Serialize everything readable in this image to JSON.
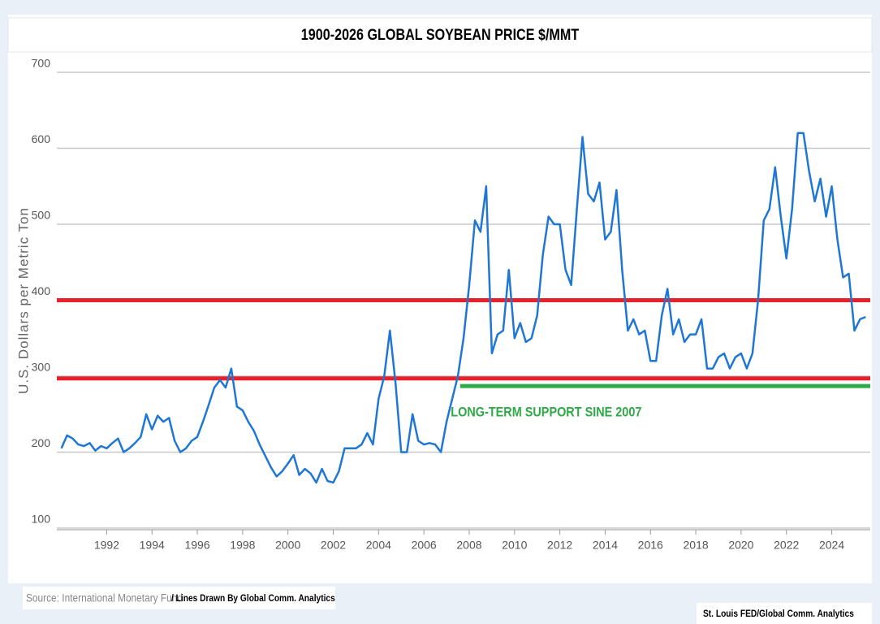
{
  "chart_data": {
    "type": "line",
    "title": "1900-2026 GLOBAL SOYBEAN PRICE  $/MMT",
    "y_label": "U.S. Dollars per Metric Ton",
    "source": "Source: International Monetary Fund",
    "source_note": "/ Lines Drawn By Global Comm. Analytics",
    "credit": "St. Louis FED/Global Comm. Analytics",
    "annotation": {
      "text": "LONG-TERM SUPPORT SINE 2007",
      "x": 2011.4,
      "y": 252,
      "color": "#2eaa46"
    },
    "hlines": [
      {
        "value": 400,
        "color": "#e8202a"
      },
      {
        "value": 297,
        "color": "#e8202a"
      },
      {
        "value": 287,
        "x0": 2007.6,
        "color": "#2eaa46"
      }
    ],
    "xlim": [
      1989.8,
      2025.7
    ],
    "ylim": [
      100,
      700
    ],
    "xticks": [
      1992,
      1994,
      1996,
      1998,
      2000,
      2002,
      2004,
      2006,
      2008,
      2010,
      2012,
      2014,
      2016,
      2018,
      2020,
      2022,
      2024
    ],
    "yticks": [
      100,
      200,
      300,
      400,
      500,
      600,
      700
    ],
    "grid": true,
    "x": [
      1990,
      1990.25,
      1990.5,
      1990.75,
      1991,
      1991.25,
      1991.5,
      1991.75,
      1992,
      1992.25,
      1992.5,
      1992.75,
      1993,
      1993.25,
      1993.5,
      1993.75,
      1994,
      1994.25,
      1994.5,
      1994.75,
      1995,
      1995.25,
      1995.5,
      1995.75,
      1996,
      1996.25,
      1996.5,
      1996.75,
      1997,
      1997.25,
      1997.5,
      1997.75,
      1998,
      1998.25,
      1998.5,
      1998.75,
      1999,
      1999.25,
      1999.5,
      1999.75,
      2000,
      2000.25,
      2000.5,
      2000.75,
      2001,
      2001.25,
      2001.5,
      2001.75,
      2002,
      2002.25,
      2002.5,
      2002.75,
      2003,
      2003.25,
      2003.5,
      2003.75,
      2004,
      2004.25,
      2004.5,
      2004.75,
      2005,
      2005.25,
      2005.5,
      2005.75,
      2006,
      2006.25,
      2006.5,
      2006.75,
      2007,
      2007.25,
      2007.5,
      2007.75,
      2008,
      2008.25,
      2008.5,
      2008.75,
      2009,
      2009.25,
      2009.5,
      2009.75,
      2010,
      2010.25,
      2010.5,
      2010.75,
      2011,
      2011.25,
      2011.5,
      2011.75,
      2012,
      2012.25,
      2012.5,
      2012.75,
      2013,
      2013.25,
      2013.5,
      2013.75,
      2014,
      2014.25,
      2014.5,
      2014.75,
      2015,
      2015.25,
      2015.5,
      2015.75,
      2016,
      2016.25,
      2016.5,
      2016.75,
      2017,
      2017.25,
      2017.5,
      2017.75,
      2018,
      2018.25,
      2018.5,
      2018.75,
      2019,
      2019.25,
      2019.5,
      2019.75,
      2020,
      2020.25,
      2020.5,
      2020.75,
      2021,
      2021.25,
      2021.5,
      2021.75,
      2022,
      2022.25,
      2022.5,
      2022.75,
      2023,
      2023.25,
      2023.5,
      2023.75,
      2024,
      2024.25,
      2024.5,
      2024.75,
      2025,
      2025.25,
      2025.5
    ],
    "series": [
      {
        "color": "#1f77d4",
        "values": [
          205,
          222,
          218,
          210,
          208,
          212,
          202,
          208,
          205,
          212,
          218,
          200,
          205,
          212,
          220,
          250,
          230,
          248,
          240,
          245,
          215,
          200,
          205,
          215,
          220,
          240,
          262,
          285,
          295,
          285,
          310,
          260,
          255,
          240,
          228,
          210,
          195,
          180,
          168,
          175,
          185,
          196,
          170,
          178,
          172,
          160,
          178,
          162,
          160,
          175,
          205,
          205,
          205,
          210,
          225,
          210,
          270,
          300,
          360,
          290,
          200,
          200,
          250,
          215,
          210,
          212,
          210,
          200,
          240,
          270,
          300,
          350,
          420,
          505,
          490,
          550,
          330,
          355,
          360,
          440,
          350,
          370,
          345,
          350,
          380,
          460,
          510,
          500,
          500,
          440,
          420,
          520,
          615,
          540,
          530,
          555,
          480,
          490,
          545,
          440,
          360,
          375,
          355,
          360,
          320,
          320,
          380,
          415,
          355,
          375,
          345,
          355,
          355,
          375,
          310,
          310,
          325,
          330,
          310,
          325,
          330,
          310,
          330,
          400,
          505,
          520,
          575,
          510,
          455,
          520,
          620,
          620,
          570,
          530,
          560,
          510,
          550,
          480,
          430,
          435,
          360,
          375,
          378
        ]
      }
    ]
  }
}
